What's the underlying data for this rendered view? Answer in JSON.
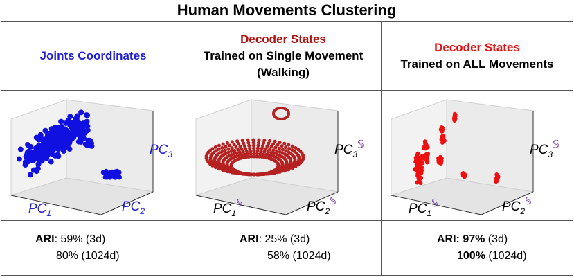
{
  "title": "Human Movements Clustering",
  "panels": [
    {
      "header": [
        {
          "text": "Joints Coordinates",
          "color": "#1f1fd6"
        }
      ],
      "axis_color": "#1f1fd6",
      "sup_color": "#7030a0",
      "point_color": "#1010e0",
      "axes": [
        {
          "base": "PC",
          "sub": "1"
        },
        {
          "base": "PC",
          "sub": "2"
        },
        {
          "base": "PC",
          "sub": "3"
        }
      ],
      "ari": [
        [
          {
            "text": "ARI",
            "bold": true
          },
          {
            "text": ": 59% (3d)"
          }
        ],
        [
          {
            "text": "80% (1024d)"
          }
        ]
      ]
    },
    {
      "header": [
        {
          "text": "Decoder States",
          "color": "#b01010"
        },
        {
          "text": "Trained on Single Movement",
          "color": "#000000"
        },
        {
          "text": "(Walking)",
          "color": "#000000"
        }
      ],
      "axis_color": "#000000",
      "sup_color": "#7030a0",
      "point_color": "#b52020",
      "axes": [
        {
          "base": "PC",
          "sub": "1",
          "sup": "𝕊"
        },
        {
          "base": "PC",
          "sub": "2",
          "sup": "𝕊"
        },
        {
          "base": "PC",
          "sub": "3",
          "sup": "𝕊"
        }
      ],
      "ari": [
        [
          {
            "text": "ARI",
            "bold": true
          },
          {
            "text": ": 25% (3d)"
          }
        ],
        [
          {
            "text": "58% (1024d)"
          }
        ]
      ]
    },
    {
      "header": [
        {
          "text": "Decoder States",
          "color": "#e81010"
        },
        {
          "text": "Trained on ALL Movements",
          "color": "#000000"
        }
      ],
      "axis_color": "#000000",
      "sup_color": "#7030a0",
      "point_color": "#ee1010",
      "axes": [
        {
          "base": "PC",
          "sub": "1",
          "sup": "𝕊"
        },
        {
          "base": "PC",
          "sub": "2",
          "sup": "𝕊"
        },
        {
          "base": "PC",
          "sub": "3",
          "sup": "𝕊"
        }
      ],
      "ari": [
        [
          {
            "text": "ARI: ",
            "bold": true
          },
          {
            "text": "97%",
            "bold": true
          },
          {
            "text": " (3d)"
          }
        ],
        [
          {
            "text": "100%",
            "bold": true
          },
          {
            "text": " (1024d)"
          }
        ]
      ]
    }
  ]
}
